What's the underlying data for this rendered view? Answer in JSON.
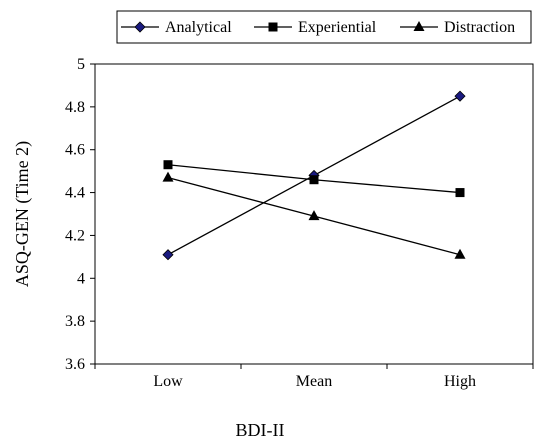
{
  "chart_data": {
    "type": "line",
    "title": "",
    "xlabel": "BDI-II",
    "ylabel": "ASQ-GEN (Time 2)",
    "categories": [
      "Low",
      "Mean",
      "High"
    ],
    "ylim": [
      3.6,
      5
    ],
    "yticks": [
      "3.6",
      "3.8",
      "4",
      "4.2",
      "4.4",
      "4.6",
      "4.8",
      "5"
    ],
    "grid": false,
    "legend_position": "top",
    "series": [
      {
        "name": "Analytical",
        "marker": "diamond",
        "values": [
          4.11,
          4.48,
          4.85
        ],
        "marker_color": "#1a1a80"
      },
      {
        "name": "Experiential",
        "marker": "square",
        "values": [
          4.53,
          4.46,
          4.4
        ],
        "marker_color": "#000000"
      },
      {
        "name": "Distraction",
        "marker": "triangle",
        "values": [
          4.47,
          4.29,
          4.11
        ],
        "marker_color": "#000000"
      }
    ]
  }
}
